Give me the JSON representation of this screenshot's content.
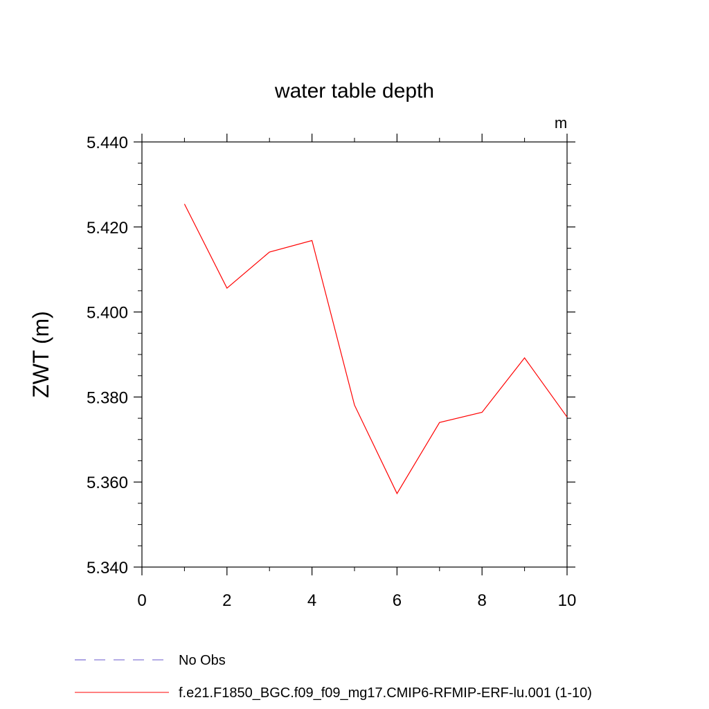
{
  "chart_data": {
    "type": "line",
    "title": "water table depth",
    "ylabel": "ZWT  (m)",
    "xlabel": "",
    "units_label": "m",
    "xlim": [
      0,
      10
    ],
    "ylim": [
      5.34,
      5.44
    ],
    "x_ticks": [
      "0",
      "2",
      "4",
      "6",
      "8",
      "10"
    ],
    "y_ticks": [
      "5.340",
      "5.360",
      "5.380",
      "5.400",
      "5.420",
      "5.440"
    ],
    "grid": false,
    "legend_position": "bottom",
    "series": [
      {
        "name": "f.e21.F1850_BGC.f09_f09_mg17.CMIP6-RFMIP-ERF-lu.001 (1-10)",
        "color": "#ff0000",
        "dash": "solid",
        "x": [
          1,
          2,
          3,
          4,
          5,
          6,
          7,
          8,
          9,
          10
        ],
        "y": [
          5.4254,
          5.4056,
          5.4141,
          5.4168,
          5.3781,
          5.3573,
          5.374,
          5.3764,
          5.3892,
          5.3753
        ]
      },
      {
        "name": "No Obs",
        "color": "#6a5acd",
        "dash": "dashed",
        "x": [],
        "y": []
      }
    ]
  }
}
